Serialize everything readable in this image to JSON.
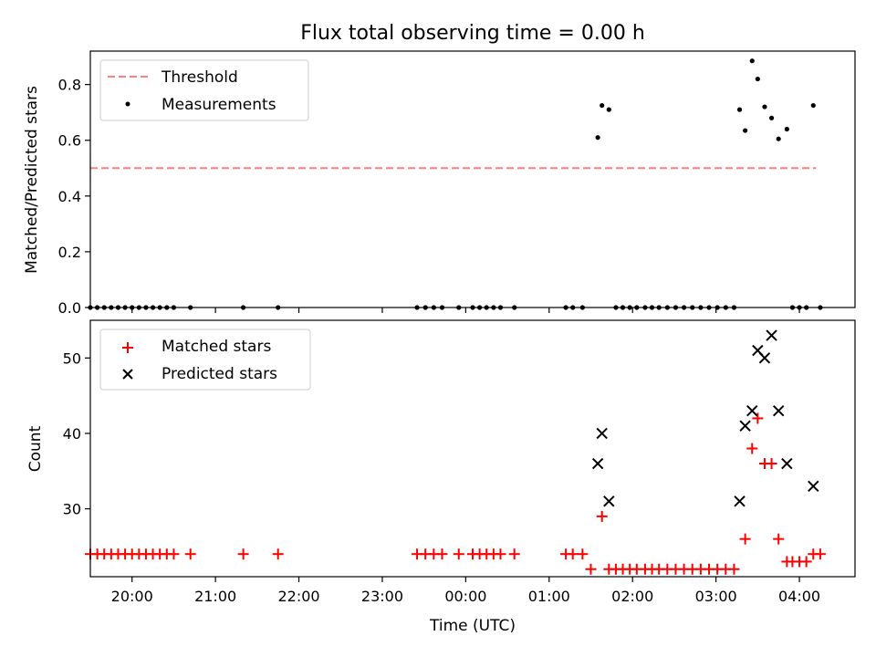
{
  "chart_data": [
    {
      "type": "scatter",
      "title": "Flux total observing time = 0.00 h",
      "ylabel": "Matched/Predicted stars",
      "xlim": [
        "19:30",
        "04:40"
      ],
      "ylim": [
        0,
        0.92
      ],
      "yticks": [
        0.0,
        0.2,
        0.4,
        0.6,
        0.8
      ],
      "ytick_labels": [
        "0.0",
        "0.2",
        "0.4",
        "0.6",
        "0.8"
      ],
      "legend": "top-left",
      "series": [
        {
          "name": "Threshold",
          "kind": "line-dashed",
          "color": "#ff7f7f",
          "x": [
            "19:30",
            "04:12"
          ],
          "y": [
            0.5,
            0.5
          ]
        },
        {
          "name": "Measurements",
          "kind": "dot",
          "color": "#000000",
          "points": [
            [
              "19:30",
              0
            ],
            [
              "19:35",
              0
            ],
            [
              "19:40",
              0
            ],
            [
              "19:45",
              0
            ],
            [
              "19:50",
              0
            ],
            [
              "19:55",
              0
            ],
            [
              "20:00",
              0
            ],
            [
              "20:05",
              0
            ],
            [
              "20:10",
              0
            ],
            [
              "20:15",
              0
            ],
            [
              "20:20",
              0
            ],
            [
              "20:25",
              0
            ],
            [
              "20:30",
              0
            ],
            [
              "20:42",
              0
            ],
            [
              "21:20",
              0
            ],
            [
              "21:45",
              0
            ],
            [
              "23:25",
              0
            ],
            [
              "23:31",
              0
            ],
            [
              "23:37",
              0
            ],
            [
              "23:43",
              0
            ],
            [
              "23:55",
              0
            ],
            [
              "00:05",
              0
            ],
            [
              "00:10",
              0
            ],
            [
              "00:15",
              0
            ],
            [
              "00:20",
              0
            ],
            [
              "00:25",
              0
            ],
            [
              "00:35",
              0
            ],
            [
              "01:12",
              0
            ],
            [
              "01:17",
              0
            ],
            [
              "01:24",
              0
            ],
            [
              "01:35",
              0.61
            ],
            [
              "01:38",
              0.725
            ],
            [
              "01:43",
              0.71
            ],
            [
              "01:48",
              0
            ],
            [
              "01:53",
              0
            ],
            [
              "01:58",
              0
            ],
            [
              "02:03",
              0
            ],
            [
              "02:09",
              0
            ],
            [
              "02:14",
              0
            ],
            [
              "02:19",
              0
            ],
            [
              "02:25",
              0
            ],
            [
              "02:31",
              0
            ],
            [
              "02:37",
              0
            ],
            [
              "02:43",
              0
            ],
            [
              "02:49",
              0
            ],
            [
              "02:55",
              0
            ],
            [
              "03:01",
              0
            ],
            [
              "03:07",
              0
            ],
            [
              "03:13",
              0
            ],
            [
              "03:17",
              0.71
            ],
            [
              "03:21",
              0.635
            ],
            [
              "03:26",
              0.885
            ],
            [
              "03:30",
              0.82
            ],
            [
              "03:35",
              0.72
            ],
            [
              "03:40",
              0.68
            ],
            [
              "03:45",
              0.605
            ],
            [
              "03:51",
              0.64
            ],
            [
              "03:55",
              0
            ],
            [
              "04:00",
              0
            ],
            [
              "04:05",
              0
            ],
            [
              "04:10",
              0.725
            ],
            [
              "04:15",
              0
            ]
          ]
        }
      ]
    },
    {
      "type": "scatter",
      "xlabel": "Time (UTC)",
      "ylabel": "Count",
      "xlim": [
        "19:30",
        "04:40"
      ],
      "ylim": [
        21,
        55
      ],
      "yticks": [
        30,
        40,
        50
      ],
      "ytick_labels": [
        "30",
        "40",
        "50"
      ],
      "xticks": [
        "20:00",
        "21:00",
        "22:00",
        "23:00",
        "00:00",
        "01:00",
        "02:00",
        "03:00",
        "04:00"
      ],
      "xtick_labels": [
        "20:00",
        "21:00",
        "22:00",
        "23:00",
        "00:00",
        "01:00",
        "02:00",
        "03:00",
        "04:00"
      ],
      "legend": "top-left",
      "series": [
        {
          "name": "Matched stars",
          "kind": "plus",
          "color": "#ff0000",
          "points": [
            [
              "19:30",
              24
            ],
            [
              "19:35",
              24
            ],
            [
              "19:40",
              24
            ],
            [
              "19:45",
              24
            ],
            [
              "19:50",
              24
            ],
            [
              "19:55",
              24
            ],
            [
              "20:00",
              24
            ],
            [
              "20:05",
              24
            ],
            [
              "20:10",
              24
            ],
            [
              "20:15",
              24
            ],
            [
              "20:20",
              24
            ],
            [
              "20:25",
              24
            ],
            [
              "20:30",
              24
            ],
            [
              "20:42",
              24
            ],
            [
              "21:20",
              24
            ],
            [
              "21:45",
              24
            ],
            [
              "23:25",
              24
            ],
            [
              "23:31",
              24
            ],
            [
              "23:37",
              24
            ],
            [
              "23:43",
              24
            ],
            [
              "23:55",
              24
            ],
            [
              "00:05",
              24
            ],
            [
              "00:10",
              24
            ],
            [
              "00:15",
              24
            ],
            [
              "00:20",
              24
            ],
            [
              "00:25",
              24
            ],
            [
              "00:35",
              24
            ],
            [
              "01:12",
              24
            ],
            [
              "01:17",
              24
            ],
            [
              "01:24",
              24
            ],
            [
              "01:30",
              22
            ],
            [
              "01:38",
              29
            ],
            [
              "01:43",
              22
            ],
            [
              "01:48",
              22
            ],
            [
              "01:53",
              22
            ],
            [
              "01:58",
              22
            ],
            [
              "02:03",
              22
            ],
            [
              "02:09",
              22
            ],
            [
              "02:14",
              22
            ],
            [
              "02:19",
              22
            ],
            [
              "02:25",
              22
            ],
            [
              "02:31",
              22
            ],
            [
              "02:37",
              22
            ],
            [
              "02:43",
              22
            ],
            [
              "02:49",
              22
            ],
            [
              "02:55",
              22
            ],
            [
              "03:01",
              22
            ],
            [
              "03:07",
              22
            ],
            [
              "03:13",
              22
            ],
            [
              "03:21",
              26
            ],
            [
              "03:26",
              38
            ],
            [
              "03:30",
              42
            ],
            [
              "03:35",
              36
            ],
            [
              "03:40",
              36
            ],
            [
              "03:45",
              26
            ],
            [
              "03:51",
              23
            ],
            [
              "03:55",
              23
            ],
            [
              "04:00",
              23
            ],
            [
              "04:05",
              23
            ],
            [
              "04:10",
              24
            ],
            [
              "04:15",
              24
            ]
          ]
        },
        {
          "name": "Predicted stars",
          "kind": "x",
          "color": "#000000",
          "points": [
            [
              "01:35",
              36
            ],
            [
              "01:38",
              40
            ],
            [
              "01:43",
              31
            ],
            [
              "03:17",
              31
            ],
            [
              "03:21",
              41
            ],
            [
              "03:26",
              43
            ],
            [
              "03:30",
              51
            ],
            [
              "03:35",
              50
            ],
            [
              "03:40",
              53
            ],
            [
              "03:45",
              43
            ],
            [
              "03:51",
              36
            ],
            [
              "04:10",
              33
            ]
          ]
        }
      ]
    }
  ]
}
